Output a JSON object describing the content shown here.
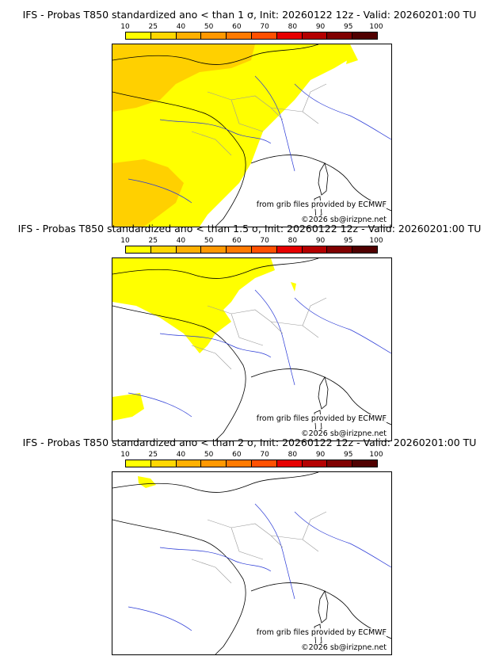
{
  "legend": {
    "ticks": [
      "10",
      "25",
      "40",
      "50",
      "60",
      "70",
      "80",
      "90",
      "95",
      "100"
    ],
    "colors": [
      "#ffff00",
      "#ffd700",
      "#ffb000",
      "#ff9800",
      "#ff7a00",
      "#ff5000",
      "#e60000",
      "#b40000",
      "#800000",
      "#500000"
    ]
  },
  "panels": [
    {
      "title": "IFS - Probas T850  standardized ano < than 1 σ, Init: 20260122 12z - Valid: 20260201:00 TU",
      "credit": "from grib files provided by ECMWF",
      "copyright": "©2026 sb@irizpne.net"
    },
    {
      "title": "IFS - Probas T850  standardized ano < than 1.5 σ, Init: 20260122 12z - Valid: 20260201:00 TU",
      "credit": "from grib files provided by ECMWF",
      "copyright": "©2026 sb@irizpne.net"
    },
    {
      "title": "IFS - Probas T850  standardized ano < than 2 σ, Init: 20260122 12z - Valid: 20260201:00 TU",
      "credit": "from grib files provided by ECMWF",
      "copyright": "©2026 sb@irizpne.net"
    }
  ]
}
